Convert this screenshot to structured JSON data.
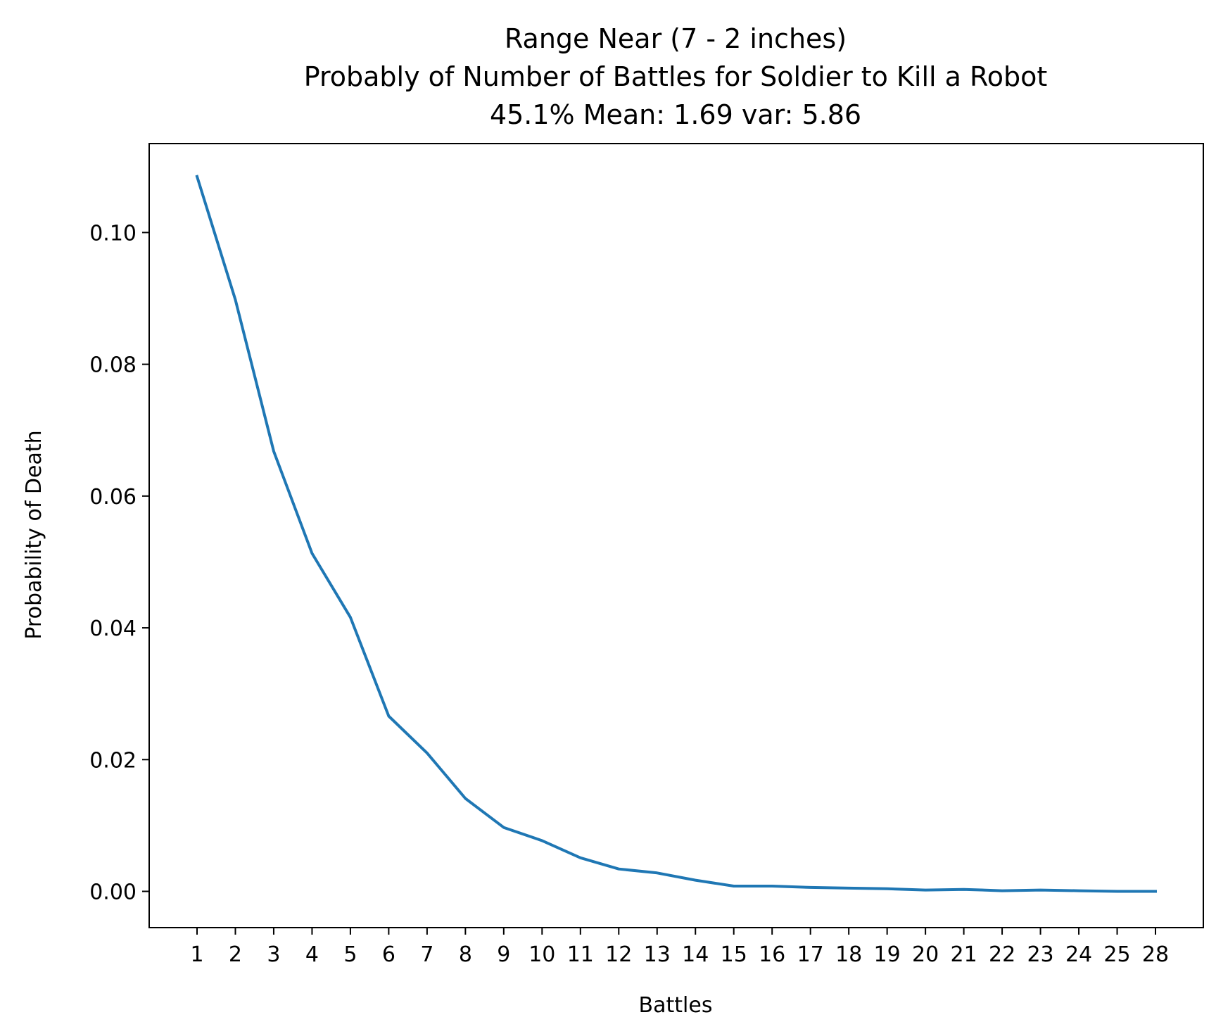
{
  "chart_data": {
    "type": "line",
    "title_lines": [
      "Range Near (7 - 2 inches)",
      "Probably of Number of Battles for Soldier to Kill a Robot",
      "45.1% Mean: 1.69 var: 5.86"
    ],
    "xlabel": "Battles",
    "ylabel": "Probability of Death",
    "categories": [
      "1",
      "2",
      "3",
      "4",
      "5",
      "6",
      "7",
      "8",
      "9",
      "10",
      "11",
      "12",
      "13",
      "14",
      "15",
      "16",
      "17",
      "18",
      "19",
      "20",
      "21",
      "22",
      "23",
      "24",
      "25",
      "28"
    ],
    "ylim": [
      -0.0055,
      0.1135
    ],
    "yticks": [
      0.0,
      0.02,
      0.04,
      0.06,
      0.08,
      0.1
    ],
    "ytick_labels": [
      "0.00",
      "0.02",
      "0.04",
      "0.06",
      "0.08",
      "0.10"
    ],
    "grid": false,
    "series": [
      {
        "color": "#1f77b4",
        "values": [
          0.1085,
          0.0898,
          0.0668,
          0.0513,
          0.0416,
          0.0266,
          0.021,
          0.0141,
          0.0097,
          0.0077,
          0.0051,
          0.0034,
          0.0028,
          0.0017,
          0.0008,
          0.0008,
          0.0006,
          0.0005,
          0.0004,
          0.0002,
          0.0003,
          0.0001,
          0.0002,
          0.0001,
          0.0,
          0.0
        ]
      }
    ]
  }
}
